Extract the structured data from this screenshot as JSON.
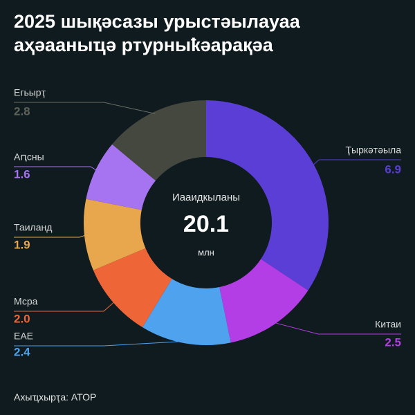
{
  "chart_data": {
    "type": "donut",
    "title": "2025 шықәсазы урыстәылауаа аҳәааныҵә ртурныҟәарақәа",
    "center_label": "Иааидкыланы",
    "total": 20.1,
    "unit": "млн",
    "categories": [
      "Ҭыркәтәыла",
      "Китаи",
      "ЕАЕ",
      "Мсра",
      "Таиланд",
      "Аԥсны",
      "Егьырҭ"
    ],
    "values": [
      6.9,
      2.5,
      2.4,
      2.0,
      1.9,
      1.6,
      2.8
    ],
    "value_labels": [
      "6.9",
      "2.5",
      "2.4",
      "2.0",
      "1.9",
      "1.6",
      "2.8"
    ],
    "colors": [
      "#5a3ed6",
      "#b43ee6",
      "#4ea2ee",
      "#ee6538",
      "#e8a64d",
      "#a674f0",
      "#45483f"
    ],
    "source": "Ахыҵхырҭа: АТОР"
  }
}
